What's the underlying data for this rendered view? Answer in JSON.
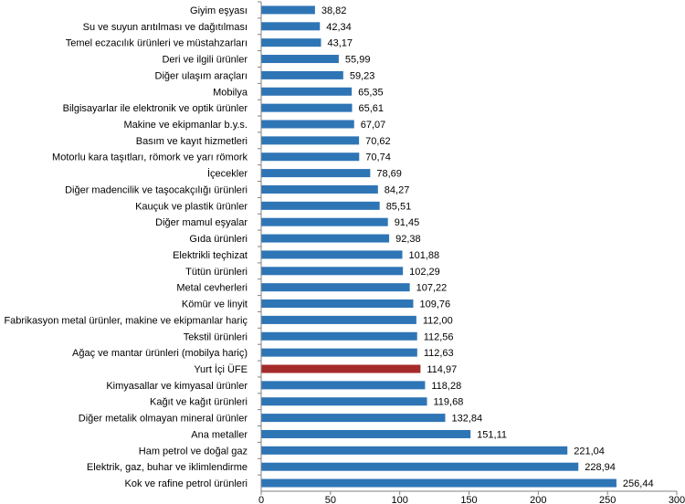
{
  "chart_data": {
    "type": "bar",
    "orientation": "horizontal",
    "title": "",
    "xlabel": "",
    "ylabel": "",
    "xlim": [
      0,
      300
    ],
    "x_ticks": [
      "0",
      "50",
      "100",
      "150",
      "200",
      "250",
      "300"
    ],
    "grid": false,
    "categories": [
      "Giyim eşyası",
      "Su ve suyun arıtılması ve dağıtılması",
      "Temel eczacılık ürünleri ve müstahzarları",
      "Deri ve ilgili ürünler",
      "Diğer ulaşım araçları",
      "Mobilya",
      "Bilgisayarlar ile elektronik ve optik ürünler",
      "Makine ve ekipmanlar b.y.s.",
      "Basım ve kayıt hizmetleri",
      "Motorlu kara taşıtları, römork ve yarı römork",
      "İçecekler",
      "Diğer madencilik ve taşocakçılığı ürünleri",
      "Kauçuk ve plastik ürünler",
      "Diğer mamul eşyalar",
      "Gıda ürünleri",
      "Elektrikli teçhizat",
      "Tütün ürünleri",
      "Metal cevherleri",
      "Kömür ve linyit",
      "Fabrikasyon metal ürünler, makine ve ekipmanlar hariç",
      "Tekstil ürünleri",
      "Ağaç ve mantar ürünleri (mobilya hariç)",
      "Yurt İçi ÜFE",
      "Kimyasallar ve kimyasal ürünler",
      "Kağıt ve kağıt ürünleri",
      "Diğer metalik olmayan mineral ürünler",
      "Ana metaller",
      "Ham petrol ve doğal gaz",
      "Elektrik, gaz, buhar ve iklimlendirme",
      "Kok ve rafine petrol ürünleri"
    ],
    "values": [
      38.82,
      42.34,
      43.17,
      55.99,
      59.23,
      65.35,
      65.61,
      67.07,
      70.62,
      70.74,
      78.69,
      84.27,
      85.51,
      91.45,
      92.38,
      101.88,
      102.29,
      107.22,
      109.76,
      112.0,
      112.56,
      112.63,
      114.97,
      118.28,
      119.68,
      132.84,
      151.11,
      221.04,
      228.94,
      256.44
    ],
    "value_labels": [
      "38,82",
      "42,34",
      "43,17",
      "55,99",
      "59,23",
      "65,35",
      "65,61",
      "67,07",
      "70,62",
      "70,74",
      "78,69",
      "84,27",
      "85,51",
      "91,45",
      "92,38",
      "101,88",
      "102,29",
      "107,22",
      "109,76",
      "112,00",
      "112,56",
      "112,63",
      "114,97",
      "118,28",
      "119,68",
      "132,84",
      "151,11",
      "221,04",
      "228,94",
      "256,44"
    ],
    "highlight_category": "Yurt İçi ÜFE",
    "colors": {
      "bar": "#2e75b6",
      "highlight": "#a52a2a",
      "axis": "#808080"
    }
  }
}
